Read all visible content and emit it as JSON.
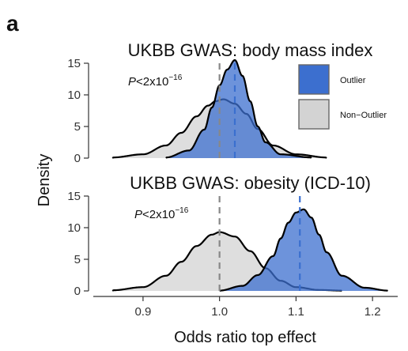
{
  "figure": {
    "panel_letter": "a",
    "ylabel": "Density",
    "xlabel": "Odds ratio top effect",
    "legend": [
      {
        "label": "Outlier",
        "color": "#3c6fcf"
      },
      {
        "label": "Non−Outlier",
        "color": "#d3d3d3"
      }
    ]
  },
  "chart_data": [
    {
      "type": "area",
      "title": "UKBB GWAS: body mass index",
      "annotation": {
        "prefix": "P",
        "text": "<2x10",
        "exponent": "−16"
      },
      "xlim": [
        0.835,
        1.235
      ],
      "ylim": [
        0,
        15
      ],
      "yticks": [
        0,
        5,
        10,
        15
      ],
      "xticks": [
        0.9,
        1.0,
        1.1,
        1.2
      ],
      "legend_position": "top-right",
      "series": [
        {
          "name": "Non−Outlier",
          "mean_line": 1.0,
          "x": [
            0.86,
            0.9,
            0.93,
            0.95,
            0.97,
            0.985,
            0.995,
            1.005,
            1.02,
            1.035,
            1.05,
            1.07,
            1.1,
            1.14
          ],
          "y": [
            0.1,
            0.6,
            2.0,
            4.0,
            6.6,
            8.3,
            9.0,
            9.3,
            8.6,
            7.0,
            4.6,
            2.0,
            0.6,
            0.1
          ]
        },
        {
          "name": "Outlier",
          "mean_line": 1.02,
          "x": [
            0.93,
            0.96,
            0.98,
            0.99,
            1.0,
            1.01,
            1.02,
            1.03,
            1.04,
            1.05,
            1.06,
            1.08,
            1.12
          ],
          "y": [
            0.1,
            1.2,
            4.5,
            8.0,
            11.5,
            14.0,
            15.5,
            13.0,
            9.0,
            5.0,
            2.5,
            0.6,
            0.1
          ]
        }
      ]
    },
    {
      "type": "area",
      "title": "UKBB GWAS: obesity (ICD-10)",
      "annotation": {
        "prefix": "P",
        "text": "<2x10",
        "exponent": "−16"
      },
      "xlim": [
        0.835,
        1.235
      ],
      "ylim": [
        0,
        15
      ],
      "yticks": [
        0,
        5,
        10,
        15
      ],
      "xticks": [
        0.9,
        1.0,
        1.1,
        1.2
      ],
      "series": [
        {
          "name": "Non−Outlier",
          "mean_line": 1.0,
          "x": [
            0.86,
            0.9,
            0.93,
            0.95,
            0.97,
            0.99,
            1.0,
            1.02,
            1.04,
            1.06,
            1.08,
            1.1,
            1.13,
            1.16
          ],
          "y": [
            0.1,
            0.6,
            2.4,
            4.6,
            7.1,
            8.9,
            9.3,
            8.6,
            6.3,
            3.6,
            1.6,
            0.6,
            0.15,
            0.05
          ]
        },
        {
          "name": "Outlier",
          "mean_line": 1.105,
          "x": [
            1.0,
            1.03,
            1.05,
            1.07,
            1.08,
            1.09,
            1.1,
            1.11,
            1.12,
            1.13,
            1.14,
            1.16,
            1.19,
            1.22
          ],
          "y": [
            0.05,
            0.8,
            2.5,
            5.5,
            8.3,
            10.8,
            12.4,
            12.9,
            11.6,
            8.9,
            6.1,
            2.4,
            0.5,
            0.05
          ]
        }
      ]
    }
  ]
}
